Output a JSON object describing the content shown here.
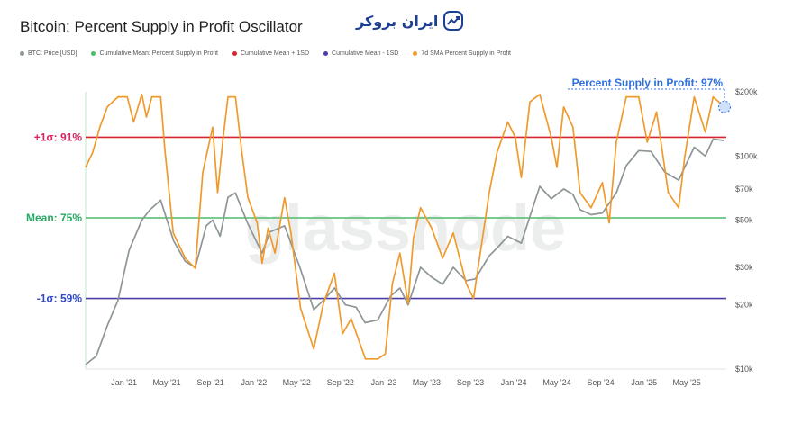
{
  "title": "Bitcoin: Percent Supply in Profit Oscillator",
  "logo_text": "ایران بروکر",
  "colors": {
    "price": "#8d9596",
    "mean": "#4cbb6c",
    "plus": "#d6262b",
    "minus": "#4a3fa8",
    "sma": "#ef9a2c",
    "annotation": "#2d6fdc",
    "sigma_plus_label": "#d6265f",
    "mean_label": "#27a864",
    "sigma_minus_label": "#2d49c8"
  },
  "chart_data": {
    "type": "line",
    "title": "Bitcoin: Percent Supply in Profit Oscillator",
    "legend": [
      {
        "label": "BTC: Price [USD]",
        "color": "#8d9596"
      },
      {
        "label": "Cumulative Mean: Percent Supply in Profit",
        "color": "#4cbb6c"
      },
      {
        "label": "Cumulative Mean + 1SD",
        "color": "#d6262b"
      },
      {
        "label": "Cumulative Mean - 1SD",
        "color": "#4a3fa8"
      },
      {
        "label": "7d SMA Percent Supply in Profit",
        "color": "#ef9a2c"
      }
    ],
    "legend_position": "top-left",
    "x_ticks": [
      "Jan '21",
      "May '21",
      "Sep '21",
      "Jan '22",
      "May '22",
      "Sep '22",
      "Jan '23",
      "May '23",
      "Sep '23",
      "Jan '24",
      "May '24",
      "Sep '24",
      "Jan '25",
      "May '25"
    ],
    "x_range": [
      "2020-09-15",
      "2025-08-20"
    ],
    "y_right_ticks": [
      "$200k",
      "$100k",
      "$70k",
      "$50k",
      "$30k",
      "$20k",
      "$10k"
    ],
    "y_right_scale": "log",
    "y_right_range": [
      10000,
      200000
    ],
    "y_left_range": [
      45,
      100
    ],
    "reference_lines": [
      {
        "label": "+1σ: 91%",
        "value": 91,
        "color": "#d6262b"
      },
      {
        "label": "Mean: 75%",
        "value": 75,
        "color": "#4cbb6c"
      },
      {
        "label": "-1σ: 59%",
        "value": 59,
        "color": "#4a3fa8"
      }
    ],
    "annotation": "Percent Supply in Profit: 97%",
    "watermark": "glassnode",
    "series": [
      {
        "name": "BTC: Price [USD]",
        "axis": "right",
        "points": [
          [
            "2020-09-15",
            10500
          ],
          [
            "2020-10-15",
            11500
          ],
          [
            "2020-11-15",
            16000
          ],
          [
            "2020-12-15",
            21000
          ],
          [
            "2021-01-15",
            36000
          ],
          [
            "2021-02-20",
            50000
          ],
          [
            "2021-03-15",
            56000
          ],
          [
            "2021-04-14",
            62000
          ],
          [
            "2021-05-20",
            40000
          ],
          [
            "2021-06-22",
            32000
          ],
          [
            "2021-07-20",
            30000
          ],
          [
            "2021-08-20",
            47000
          ],
          [
            "2021-09-07",
            50000
          ],
          [
            "2021-09-28",
            42000
          ],
          [
            "2021-10-20",
            64000
          ],
          [
            "2021-11-10",
            67000
          ],
          [
            "2021-12-15",
            48000
          ],
          [
            "2022-01-24",
            35000
          ],
          [
            "2022-02-15",
            44000
          ],
          [
            "2022-03-28",
            47000
          ],
          [
            "2022-05-10",
            30000
          ],
          [
            "2022-06-18",
            19000
          ],
          [
            "2022-07-15",
            21000
          ],
          [
            "2022-08-15",
            24000
          ],
          [
            "2022-09-15",
            20000
          ],
          [
            "2022-10-15",
            19500
          ],
          [
            "2022-11-09",
            16500
          ],
          [
            "2022-12-15",
            17000
          ],
          [
            "2023-01-20",
            22000
          ],
          [
            "2023-02-15",
            24000
          ],
          [
            "2023-03-10",
            20000
          ],
          [
            "2023-04-14",
            30000
          ],
          [
            "2023-05-15",
            27000
          ],
          [
            "2023-06-15",
            25000
          ],
          [
            "2023-07-15",
            30000
          ],
          [
            "2023-08-20",
            26000
          ],
          [
            "2023-09-15",
            26500
          ],
          [
            "2023-10-24",
            34000
          ],
          [
            "2023-11-15",
            37000
          ],
          [
            "2023-12-15",
            42000
          ],
          [
            "2024-01-22",
            39000
          ],
          [
            "2024-02-15",
            52000
          ],
          [
            "2024-03-14",
            72000
          ],
          [
            "2024-04-15",
            63000
          ],
          [
            "2024-05-20",
            70000
          ],
          [
            "2024-06-15",
            66000
          ],
          [
            "2024-07-05",
            56000
          ],
          [
            "2024-08-05",
            53000
          ],
          [
            "2024-09-06",
            54000
          ],
          [
            "2024-10-15",
            67000
          ],
          [
            "2024-11-12",
            90000
          ],
          [
            "2024-12-17",
            106000
          ],
          [
            "2025-01-20",
            105000
          ],
          [
            "2025-02-28",
            84000
          ],
          [
            "2025-04-08",
            77000
          ],
          [
            "2025-05-22",
            110000
          ],
          [
            "2025-06-22",
            100000
          ],
          [
            "2025-07-14",
            120000
          ],
          [
            "2025-08-15",
            118000
          ]
        ]
      },
      {
        "name": "7d SMA Percent Supply in Profit",
        "axis": "left",
        "points": [
          [
            "2020-09-15",
            85
          ],
          [
            "2020-10-05",
            88
          ],
          [
            "2020-10-25",
            93
          ],
          [
            "2020-11-15",
            97
          ],
          [
            "2020-12-15",
            99
          ],
          [
            "2021-01-10",
            99
          ],
          [
            "2021-01-28",
            94
          ],
          [
            "2021-02-20",
            99.5
          ],
          [
            "2021-03-05",
            95
          ],
          [
            "2021-03-20",
            99
          ],
          [
            "2021-04-14",
            99
          ],
          [
            "2021-04-25",
            89
          ],
          [
            "2021-05-19",
            72
          ],
          [
            "2021-06-22",
            67
          ],
          [
            "2021-07-20",
            65
          ],
          [
            "2021-08-10",
            84
          ],
          [
            "2021-09-07",
            93
          ],
          [
            "2021-09-21",
            80
          ],
          [
            "2021-10-05",
            90
          ],
          [
            "2021-10-20",
            99
          ],
          [
            "2021-11-10",
            99
          ],
          [
            "2021-11-28",
            88
          ],
          [
            "2021-12-15",
            79
          ],
          [
            "2022-01-10",
            74
          ],
          [
            "2022-01-24",
            66
          ],
          [
            "2022-02-10",
            73
          ],
          [
            "2022-03-01",
            68
          ],
          [
            "2022-03-28",
            79
          ],
          [
            "2022-04-15",
            72
          ],
          [
            "2022-05-12",
            57
          ],
          [
            "2022-06-18",
            49
          ],
          [
            "2022-07-15",
            58
          ],
          [
            "2022-08-15",
            64
          ],
          [
            "2022-09-07",
            52
          ],
          [
            "2022-10-01",
            55
          ],
          [
            "2022-11-10",
            47
          ],
          [
            "2022-12-15",
            47
          ],
          [
            "2023-01-05",
            48
          ],
          [
            "2023-01-25",
            62
          ],
          [
            "2023-02-15",
            68
          ],
          [
            "2023-03-10",
            58
          ],
          [
            "2023-03-25",
            71
          ],
          [
            "2023-04-14",
            77
          ],
          [
            "2023-05-15",
            73
          ],
          [
            "2023-06-15",
            67
          ],
          [
            "2023-07-15",
            72
          ],
          [
            "2023-08-20",
            62
          ],
          [
            "2023-09-10",
            59
          ],
          [
            "2023-10-24",
            80
          ],
          [
            "2023-11-15",
            88
          ],
          [
            "2023-12-15",
            94
          ],
          [
            "2024-01-05",
            91
          ],
          [
            "2024-01-22",
            83
          ],
          [
            "2024-02-15",
            98
          ],
          [
            "2024-03-14",
            99.5
          ],
          [
            "2024-04-15",
            91
          ],
          [
            "2024-05-01",
            85
          ],
          [
            "2024-05-20",
            97
          ],
          [
            "2024-06-15",
            93
          ],
          [
            "2024-07-05",
            80
          ],
          [
            "2024-08-05",
            77
          ],
          [
            "2024-09-06",
            82
          ],
          [
            "2024-09-25",
            74
          ],
          [
            "2024-10-15",
            90
          ],
          [
            "2024-11-12",
            99
          ],
          [
            "2024-12-17",
            99
          ],
          [
            "2025-01-10",
            90
          ],
          [
            "2025-02-05",
            96
          ],
          [
            "2025-03-10",
            80
          ],
          [
            "2025-04-08",
            77
          ],
          [
            "2025-04-25",
            87
          ],
          [
            "2025-05-22",
            99
          ],
          [
            "2025-06-22",
            92
          ],
          [
            "2025-07-14",
            99
          ],
          [
            "2025-08-15",
            97
          ]
        ]
      }
    ]
  }
}
